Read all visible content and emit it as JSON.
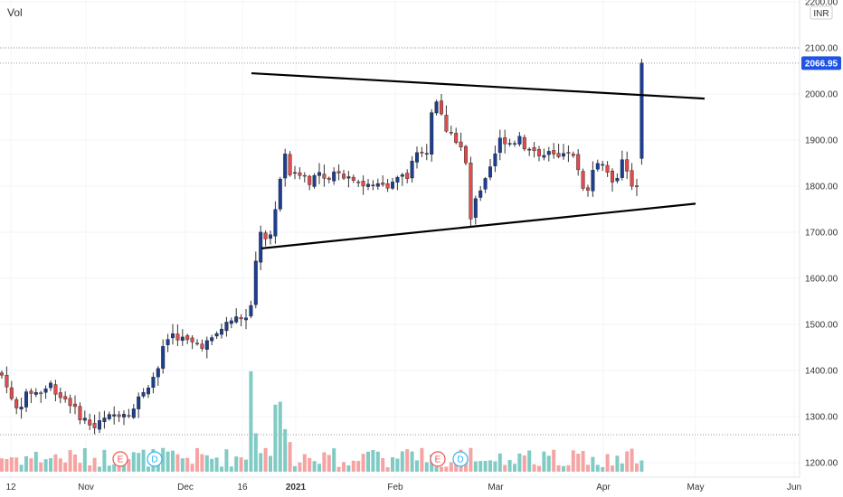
{
  "header": {
    "vol_label": "Vol"
  },
  "price_axis": {
    "currency": "INR",
    "current_price_label": "2066.95",
    "current_price": 2066.95,
    "high_line": 2100,
    "ticks": [
      {
        "v": 2200,
        "t": "2200.00"
      },
      {
        "v": 2100,
        "t": "2100.00"
      },
      {
        "v": 2000,
        "t": "2000.00"
      },
      {
        "v": 1900,
        "t": "1900.00"
      },
      {
        "v": 1800,
        "t": "1800.00"
      },
      {
        "v": 1700,
        "t": "1700.00"
      },
      {
        "v": 1600,
        "t": "1600.00"
      },
      {
        "v": 1500,
        "t": "1500.00"
      },
      {
        "v": 1400,
        "t": "1400.00"
      },
      {
        "v": 1300,
        "t": "1300.00"
      },
      {
        "v": 1200,
        "t": "1200.00"
      }
    ]
  },
  "time_axis": {
    "ticks": [
      {
        "t": "12",
        "x": 12,
        "bold": false
      },
      {
        "t": "Nov",
        "x": 95,
        "bold": false
      },
      {
        "t": "Dec",
        "x": 205,
        "bold": false
      },
      {
        "t": "16",
        "x": 268,
        "bold": false
      },
      {
        "t": "2021",
        "x": 327,
        "bold": true
      },
      {
        "t": "Feb",
        "x": 437,
        "bold": false
      },
      {
        "t": "Mar",
        "x": 548,
        "bold": false
      },
      {
        "t": "Apr",
        "x": 667,
        "bold": false
      },
      {
        "t": "May",
        "x": 769,
        "bold": false
      },
      {
        "t": "Jun",
        "x": 878,
        "bold": false
      }
    ]
  },
  "event_markers": [
    {
      "label": "E",
      "kind": "earnings",
      "x": 133
    },
    {
      "label": "D",
      "kind": "dividend",
      "x": 171
    },
    {
      "label": "E",
      "kind": "earnings",
      "x": 484
    },
    {
      "label": "D",
      "kind": "dividend",
      "x": 509
    }
  ],
  "colors": {
    "up": "#26a69a",
    "down": "#ef5350",
    "up_vol": "#80cbc4",
    "down_vol": "#f5a3a3",
    "price_tag": "#1e53e5",
    "candle_up_body": "#1e3f91",
    "candle_down_body": "#e04b4b"
  },
  "chart_data": {
    "type": "candlestick",
    "currency": "INR",
    "candles": [],
    "trendlines": [
      {
        "name": "upper",
        "from": {
          "x": 278,
          "price": 2045
        },
        "to": {
          "x": 779,
          "price": 1990
        }
      },
      {
        "name": "lower",
        "from": {
          "x": 289,
          "price": 1665
        },
        "to": {
          "x": 769,
          "price": 1762
        }
      }
    ],
    "last_price": 2066.95
  }
}
